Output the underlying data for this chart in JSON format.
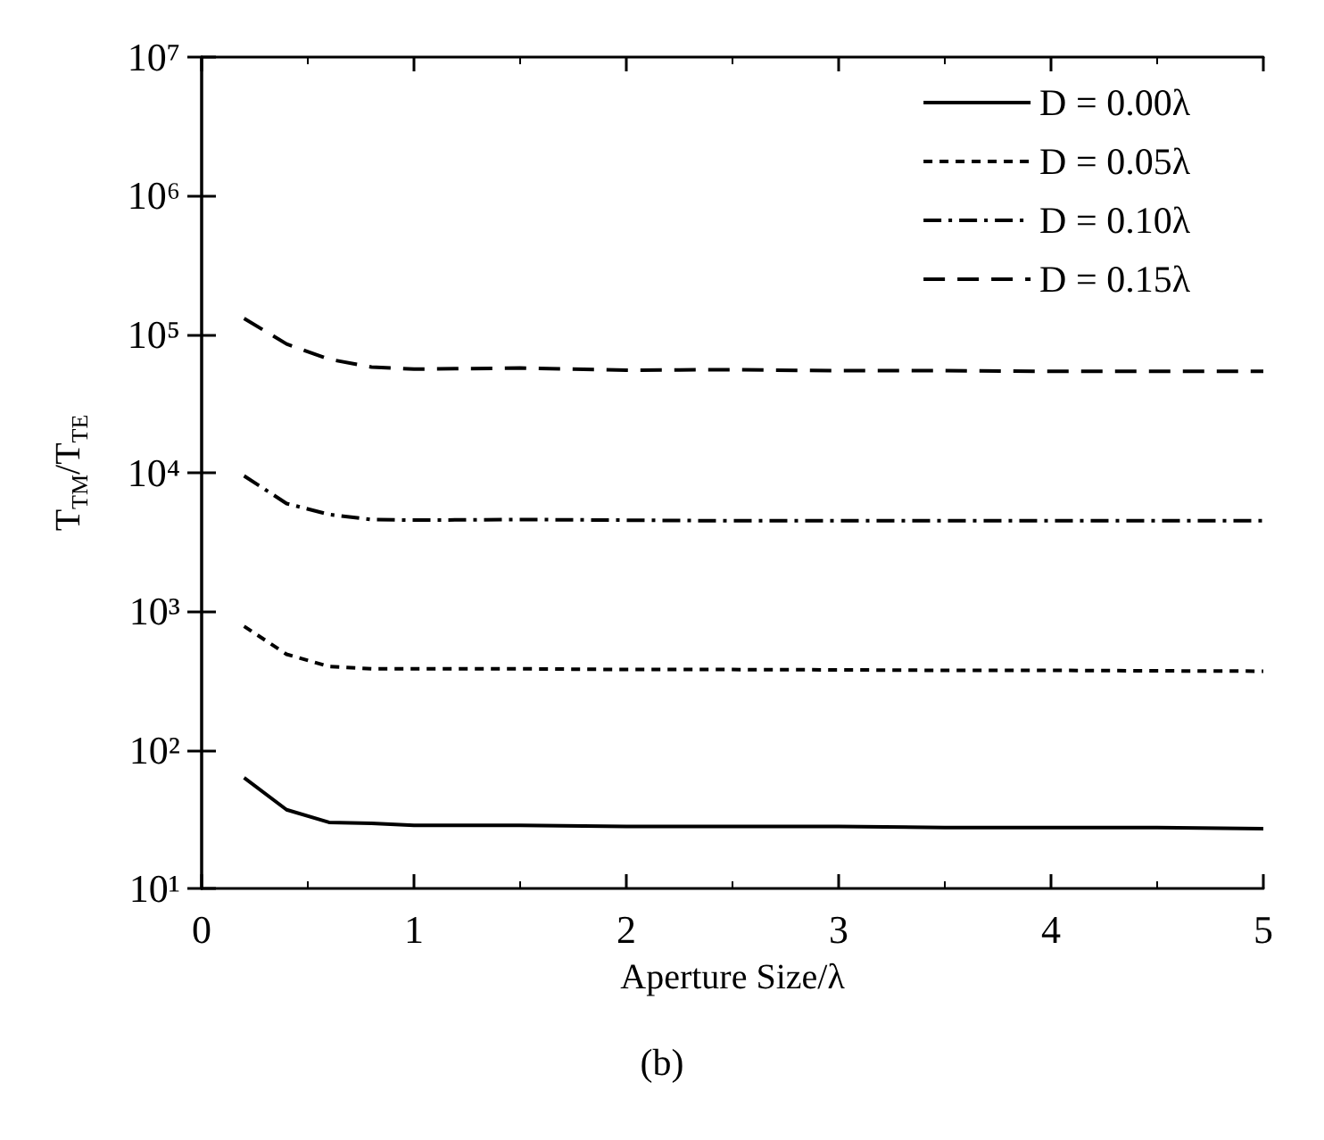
{
  "chart_data": {
    "type": "line",
    "xlabel": "Aperture Size/λ",
    "ylabel": "T$_{TM}$/T$_{TE}$",
    "annotations": [
      "(b)"
    ],
    "x": [
      0.2,
      0.4,
      0.6,
      0.8,
      1,
      1.5,
      2,
      2.5,
      3,
      3.5,
      4,
      4.5,
      5
    ],
    "series": [
      {
        "name": "D = 0.00λ",
        "color": "#000000",
        "line_style": "solid",
        "values": [
          63,
          37,
          30,
          29.5,
          28.5,
          28.5,
          28,
          28,
          28,
          27.5,
          27.5,
          27.5,
          27
        ]
      },
      {
        "name": "D = 0.05λ",
        "color": "#000000",
        "line_style": "dashed",
        "values": [
          780,
          490,
          400,
          385,
          385,
          385,
          380,
          380,
          378,
          375,
          375,
          372,
          370
        ]
      },
      {
        "name": "D = 0.10λ",
        "color": "#000000",
        "line_style": "dashdot",
        "values": [
          9500,
          6000,
          5000,
          4600,
          4550,
          4600,
          4550,
          4500,
          4500,
          4500,
          4500,
          4500,
          4500
        ]
      },
      {
        "name": "D = 0.15λ",
        "color": "#000000",
        "line_style": "longdash",
        "values": [
          130000,
          85000,
          66000,
          58000,
          56000,
          57000,
          55000,
          55500,
          54500,
          54500,
          54000,
          54000,
          54000
        ]
      }
    ],
    "xlim": [
      0,
      5
    ],
    "xticks": [
      0,
      1,
      2,
      3,
      4,
      5
    ],
    "ylim": [
      10,
      10000000
    ],
    "yticks": [
      {
        "value": 10,
        "label": "10¹"
      },
      {
        "value": 100,
        "label": "10²"
      },
      {
        "value": 1000,
        "label": "10³"
      },
      {
        "value": 10000,
        "label": "10⁴"
      },
      {
        "value": 100000,
        "label": "10⁵"
      },
      {
        "value": 1000000,
        "label": "10⁶"
      },
      {
        "value": 10000000,
        "label": "10⁷"
      }
    ],
    "log": "y",
    "grid": false,
    "legend": "top right",
    "marker": "none"
  }
}
